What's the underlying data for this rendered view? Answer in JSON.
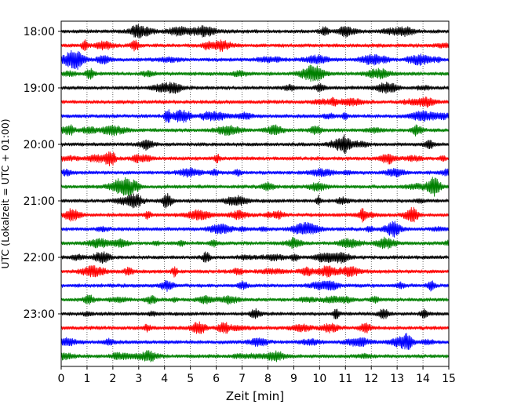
{
  "chart_data": {
    "type": "line",
    "title": "",
    "xlabel": "Zeit  [min]",
    "ylabel": "UTC (Lokalzeit = UTC + 01:00)",
    "xlim": [
      0,
      15
    ],
    "x_ticks": [
      "0",
      "1",
      "2",
      "3",
      "4",
      "5",
      "6",
      "7",
      "8",
      "9",
      "10",
      "11",
      "12",
      "13",
      "14",
      "15"
    ],
    "y_ticks": [
      "18:00",
      "19:00",
      "20:00",
      "21:00",
      "22:00",
      "23:00"
    ],
    "grid": "vertical dotted at each minute",
    "legend": "none",
    "trace_colors": [
      "#000000",
      "#ff0000",
      "#0000ff",
      "#008000"
    ],
    "traces": [
      {
        "start": "18:00",
        "color": "#000000"
      },
      {
        "start": "18:15",
        "color": "#ff0000"
      },
      {
        "start": "18:30",
        "color": "#0000ff"
      },
      {
        "start": "18:45",
        "color": "#008000"
      },
      {
        "start": "19:00",
        "color": "#000000"
      },
      {
        "start": "19:15",
        "color": "#ff0000"
      },
      {
        "start": "19:30",
        "color": "#0000ff"
      },
      {
        "start": "19:45",
        "color": "#008000"
      },
      {
        "start": "20:00",
        "color": "#000000"
      },
      {
        "start": "20:15",
        "color": "#ff0000"
      },
      {
        "start": "20:30",
        "color": "#0000ff"
      },
      {
        "start": "20:45",
        "color": "#008000"
      },
      {
        "start": "21:00",
        "color": "#000000"
      },
      {
        "start": "21:15",
        "color": "#ff0000"
      },
      {
        "start": "21:30",
        "color": "#0000ff"
      },
      {
        "start": "21:45",
        "color": "#008000"
      },
      {
        "start": "22:00",
        "color": "#000000"
      },
      {
        "start": "22:15",
        "color": "#ff0000"
      },
      {
        "start": "22:30",
        "color": "#0000ff"
      },
      {
        "start": "22:45",
        "color": "#008000"
      },
      {
        "start": "23:00",
        "color": "#000000"
      },
      {
        "start": "23:15",
        "color": "#ff0000"
      },
      {
        "start": "23:30",
        "color": "#0000ff"
      },
      {
        "start": "23:45",
        "color": "#008000"
      }
    ]
  }
}
